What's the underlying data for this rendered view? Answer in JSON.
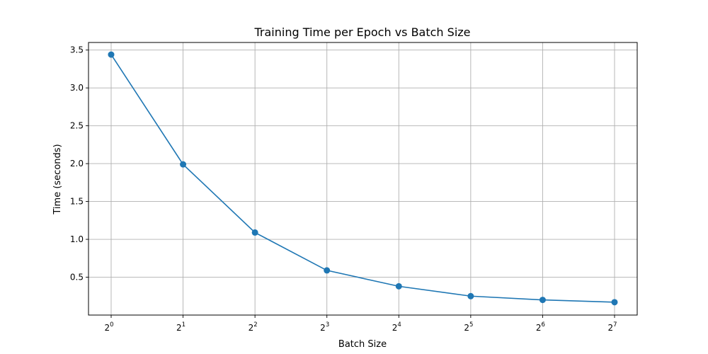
{
  "chart_data": {
    "type": "line",
    "title": "Training Time per Epoch vs Batch Size",
    "xlabel": "Batch Size",
    "ylabel": "Time (seconds)",
    "x_scale": "log2",
    "x": [
      1,
      2,
      4,
      8,
      16,
      32,
      64,
      128
    ],
    "x_tick_labels": [
      {
        "base": "2",
        "exp": "0"
      },
      {
        "base": "2",
        "exp": "1"
      },
      {
        "base": "2",
        "exp": "2"
      },
      {
        "base": "2",
        "exp": "3"
      },
      {
        "base": "2",
        "exp": "4"
      },
      {
        "base": "2",
        "exp": "5"
      },
      {
        "base": "2",
        "exp": "6"
      },
      {
        "base": "2",
        "exp": "7"
      }
    ],
    "y_ticks": [
      "0.5",
      "1.0",
      "1.5",
      "2.0",
      "2.5",
      "3.0",
      "3.5"
    ],
    "ylim": [
      0.0,
      3.6
    ],
    "series": [
      {
        "color": "#1f77b4",
        "marker": "circle",
        "values": [
          3.44,
          1.99,
          1.09,
          0.59,
          0.38,
          0.25,
          0.2,
          0.17
        ]
      }
    ],
    "grid": true
  }
}
